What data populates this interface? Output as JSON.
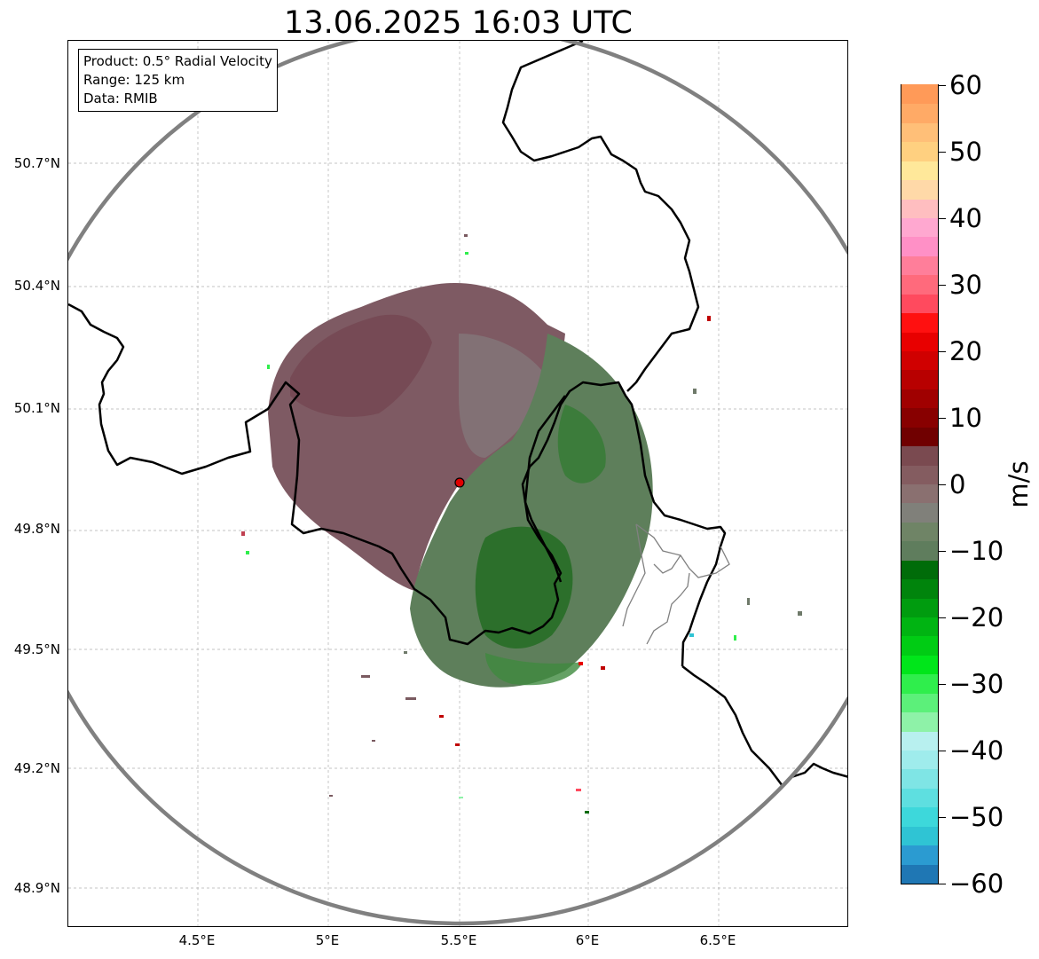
{
  "title": "13.06.2025 16:03 UTC",
  "info_box": {
    "product": "Product: 0.5° Radial Velocity",
    "range": "Range: 125 km",
    "data": "Data: RMIB"
  },
  "latitude_labels": [
    "50.7°N",
    "50.4°N",
    "50.1°N",
    "49.8°N",
    "49.5°N",
    "49.2°N",
    "48.9°N"
  ],
  "longitude_labels": [
    "4.5°E",
    "5°E",
    "5.5°E",
    "6°E",
    "6.5°E"
  ],
  "colorbar": {
    "unit": "m/s",
    "ticks": [
      "60",
      "50",
      "40",
      "30",
      "20",
      "10",
      "0",
      "−10",
      "−20",
      "−30",
      "−40",
      "−50",
      "−60"
    ],
    "min": -60,
    "max": 60,
    "colors": [
      "#1f77b4",
      "#2b9bd1",
      "#2fc4d4",
      "#3dd8db",
      "#5edfe0",
      "#7fe5e5",
      "#9fecec",
      "#b8f0ef",
      "#8ef2a8",
      "#5cf07a",
      "#2fee4c",
      "#00e61a",
      "#00cc14",
      "#00b412",
      "#009c0f",
      "#00840c",
      "#006c09",
      "#5f7d5d",
      "#6f8466",
      "#80807a",
      "#8a7070",
      "#845c60",
      "#7a4a50",
      "#700000",
      "#880000",
      "#a00000",
      "#b80000",
      "#d00000",
      "#e80000",
      "#ff1010",
      "#ff4a5e",
      "#ff6a7c",
      "#ff7e9a",
      "#ff90c6",
      "#ffa8d0",
      "#ffbec0",
      "#ffd9a8",
      "#ffe89a",
      "#ffd080",
      "#ffbf78",
      "#ffaa66",
      "#ff9a58"
    ]
  },
  "map": {
    "radar_site": {
      "lon": 5.5,
      "lat": 49.92
    },
    "range_ring_color": "#808080",
    "border_color": "#000000",
    "gridline_color": "#b0b0b0"
  }
}
